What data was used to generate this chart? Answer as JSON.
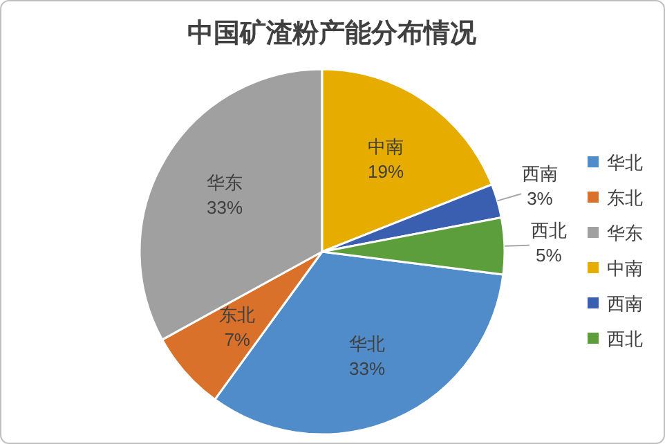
{
  "chart_data": {
    "type": "pie",
    "title": "中国矿渣粉产能分布情况",
    "categories": [
      "华北",
      "东北",
      "华东",
      "中南",
      "西南",
      "西北"
    ],
    "values": [
      33,
      7,
      33,
      19,
      3,
      5
    ],
    "value_labels": [
      "33%",
      "7%",
      "33%",
      "19%",
      "3%",
      "5%"
    ],
    "colors": [
      "#4f8cc9",
      "#d9712b",
      "#a0a0a0",
      "#e6ac00",
      "#3a5fb0",
      "#5d9e3c"
    ],
    "legend": "right"
  }
}
